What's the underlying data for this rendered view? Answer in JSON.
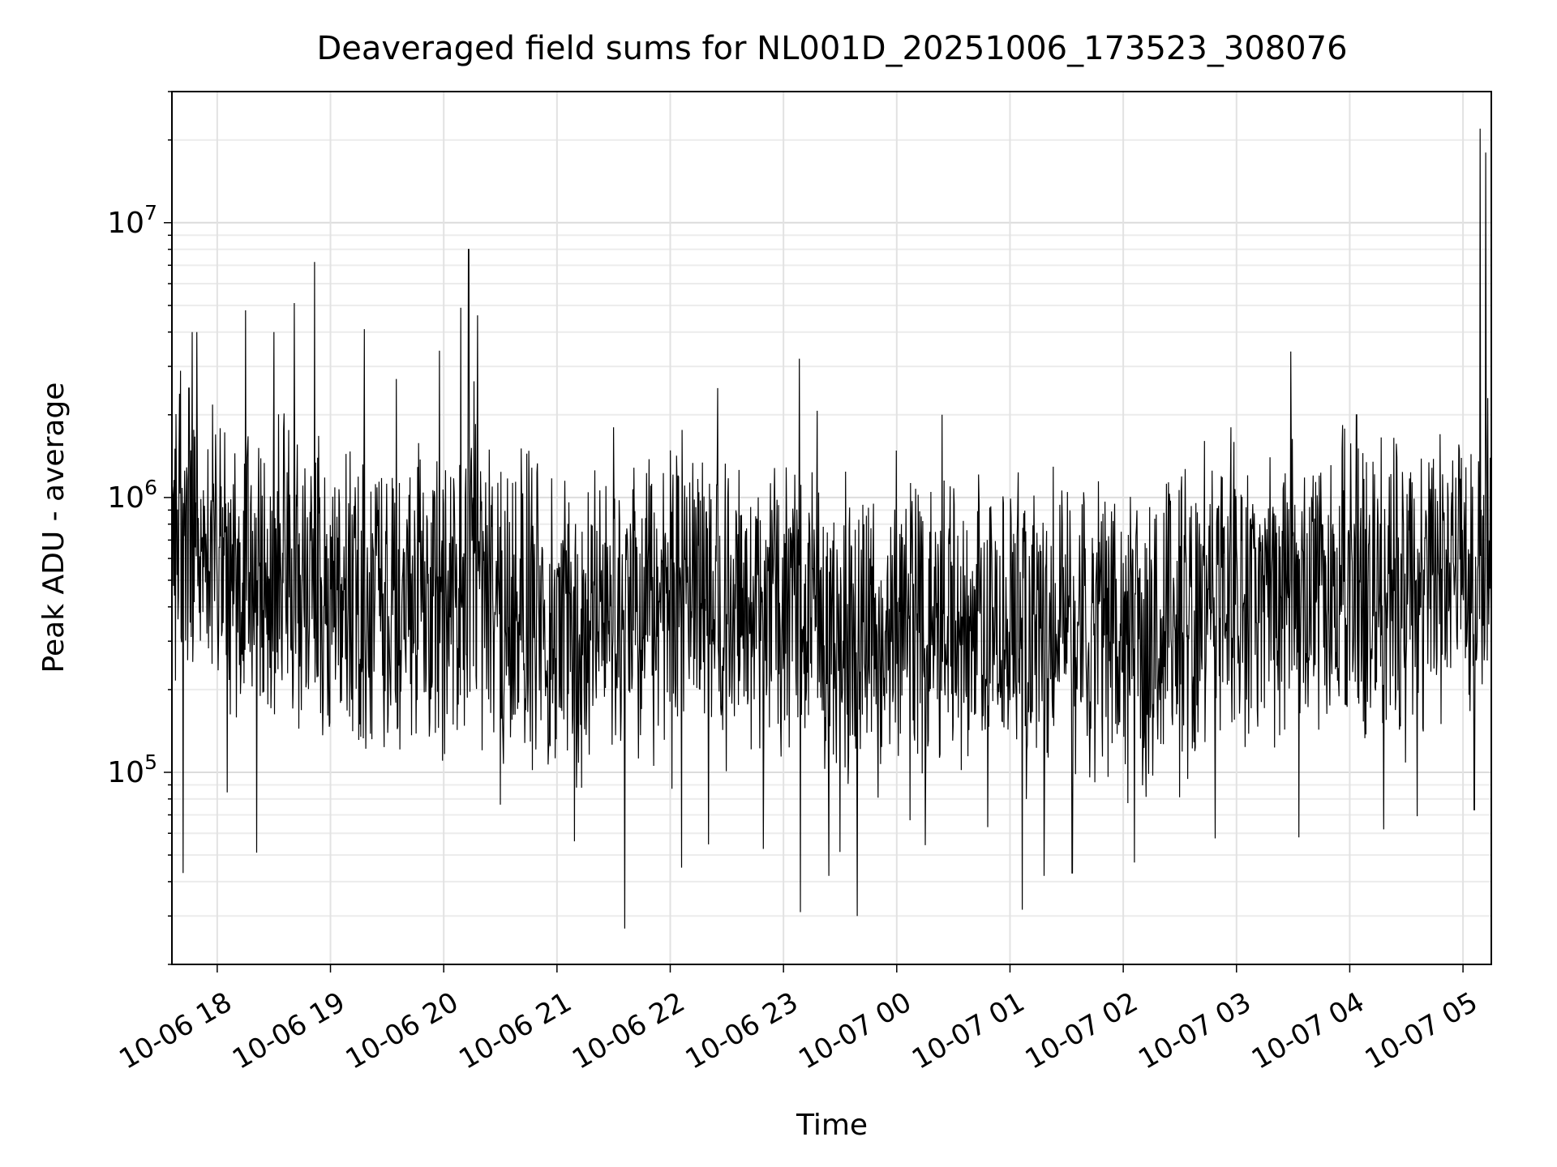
{
  "chart_data": {
    "type": "line",
    "title": "Deaveraged field sums for NL001D_20251006_173523_308076",
    "xlabel": "Time",
    "ylabel": "Peak ADU - average",
    "yscale": "log",
    "ylim": [
      20000,
      30000000
    ],
    "xlim_hours": [
      17.6,
      29.25
    ],
    "grid": true,
    "line_color": "#000000",
    "x_ticks": [
      {
        "hour": 18,
        "label": "10-06 18"
      },
      {
        "hour": 19,
        "label": "10-06 19"
      },
      {
        "hour": 20,
        "label": "10-06 20"
      },
      {
        "hour": 21,
        "label": "10-06 21"
      },
      {
        "hour": 22,
        "label": "10-06 22"
      },
      {
        "hour": 23,
        "label": "10-06 23"
      },
      {
        "hour": 24,
        "label": "10-07 00"
      },
      {
        "hour": 25,
        "label": "10-07 01"
      },
      {
        "hour": 26,
        "label": "10-07 02"
      },
      {
        "hour": 27,
        "label": "10-07 03"
      },
      {
        "hour": 28,
        "label": "10-07 04"
      },
      {
        "hour": 29,
        "label": "10-07 05"
      }
    ],
    "y_ticks": [
      {
        "value": 100000,
        "base": "10",
        "exp": "5"
      },
      {
        "value": 1000000,
        "base": "10",
        "exp": "6"
      },
      {
        "value": 10000000,
        "base": "10",
        "exp": "7"
      }
    ],
    "series": [
      {
        "name": "deaveraged field sum",
        "baseline": [
          [
            17.6,
            700000
          ],
          [
            17.8,
            750000
          ],
          [
            18.0,
            600000
          ],
          [
            18.5,
            500000
          ],
          [
            19.0,
            450000
          ],
          [
            19.5,
            400000
          ],
          [
            20.0,
            380000
          ],
          [
            20.3,
            480000
          ],
          [
            20.6,
            420000
          ],
          [
            21.0,
            320000
          ],
          [
            21.5,
            400000
          ],
          [
            22.0,
            420000
          ],
          [
            22.5,
            420000
          ],
          [
            23.0,
            350000
          ],
          [
            23.5,
            320000
          ],
          [
            24.0,
            330000
          ],
          [
            24.5,
            360000
          ],
          [
            25.0,
            360000
          ],
          [
            25.5,
            340000
          ],
          [
            26.0,
            300000
          ],
          [
            26.5,
            320000
          ],
          [
            27.0,
            420000
          ],
          [
            27.5,
            450000
          ],
          [
            28.0,
            450000
          ],
          [
            28.5,
            500000
          ],
          [
            29.0,
            520000
          ],
          [
            29.25,
            600000
          ]
        ],
        "spikes": [
          [
            17.75,
            2500000
          ],
          [
            17.78,
            4000000
          ],
          [
            17.82,
            4000000
          ],
          [
            18.25,
            4800000
          ],
          [
            18.5,
            4000000
          ],
          [
            18.68,
            5100000
          ],
          [
            18.86,
            7200000
          ],
          [
            19.3,
            4100000
          ],
          [
            19.58,
            2700000
          ],
          [
            20.15,
            4900000
          ],
          [
            20.22,
            8000000
          ],
          [
            20.3,
            4600000
          ],
          [
            21.5,
            1800000
          ],
          [
            22.42,
            2500000
          ],
          [
            23.14,
            3200000
          ],
          [
            24.4,
            2000000
          ],
          [
            26.95,
            1800000
          ],
          [
            27.48,
            3400000
          ],
          [
            28.06,
            2000000
          ],
          [
            29.15,
            22000000
          ],
          [
            29.2,
            18000000
          ],
          [
            29.22,
            2300000
          ],
          [
            17.7,
            43000
          ],
          [
            18.35,
            51000
          ],
          [
            21.6,
            27000
          ],
          [
            22.1,
            45000
          ],
          [
            23.15,
            31000
          ],
          [
            23.4,
            42000
          ],
          [
            23.65,
            30000
          ],
          [
            25.3,
            42000
          ],
          [
            25.55,
            43000
          ],
          [
            26.1,
            47000
          ],
          [
            27.55,
            58000
          ],
          [
            28.3,
            62000
          ],
          [
            29.1,
            73000
          ]
        ]
      }
    ]
  }
}
